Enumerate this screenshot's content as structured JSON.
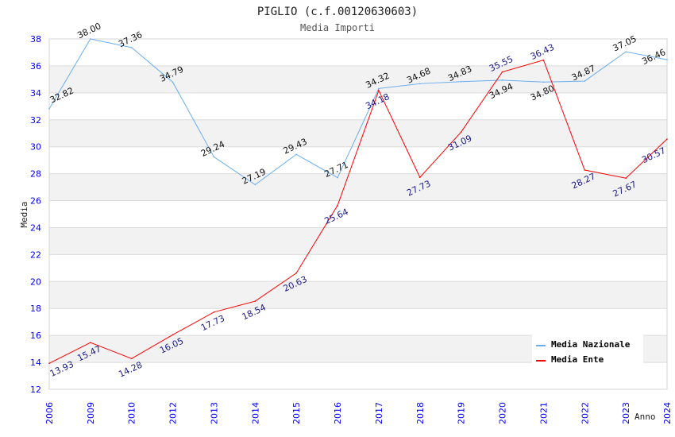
{
  "chart_data": {
    "type": "line",
    "title": "PIGLIO (c.f.00120630603)",
    "subtitle": "Media Importi",
    "xlabel": "Anno",
    "ylabel": "Media",
    "ylim": [
      12,
      38
    ],
    "yticks": [
      "12",
      "14",
      "16",
      "18",
      "20",
      "22",
      "24",
      "26",
      "28",
      "30",
      "32",
      "34",
      "36",
      "38"
    ],
    "categories": [
      "2006",
      "2009",
      "2010",
      "2012",
      "2013",
      "2014",
      "2015",
      "2016",
      "2017",
      "2018",
      "2019",
      "2020",
      "2021",
      "2022",
      "2023",
      "2024"
    ],
    "grid": true,
    "legend_position": "top-right",
    "series": [
      {
        "name": "Media Nazionale",
        "color": "#6aaef0",
        "values": [
          32.82,
          38.0,
          37.36,
          34.79,
          29.24,
          27.19,
          29.43,
          27.71,
          34.32,
          34.68,
          34.83,
          34.94,
          34.8,
          34.87,
          37.05,
          36.46
        ]
      },
      {
        "name": "Media Ente",
        "color": "#ff0000",
        "values": [
          13.93,
          15.47,
          14.28,
          16.05,
          17.73,
          18.54,
          20.63,
          25.64,
          34.18,
          27.73,
          31.09,
          35.55,
          36.43,
          28.27,
          27.67,
          30.57
        ]
      }
    ]
  }
}
